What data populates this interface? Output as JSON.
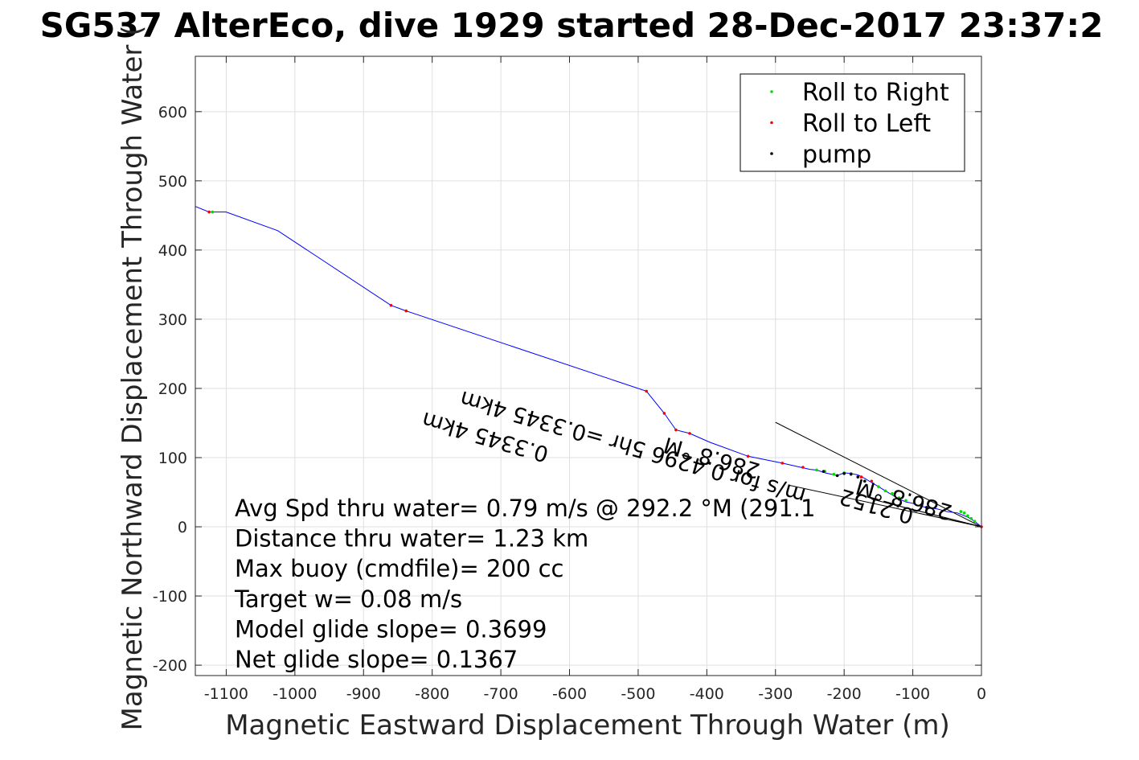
{
  "chart_data": {
    "type": "line",
    "title": "SG537 AlterEco, dive 1929 started 28-Dec-2017 23:37:2",
    "xlabel": "Magnetic Eastward Displacement Through Water (m)",
    "ylabel": "Magnetic Northward Displacement Through Water (",
    "xlim": [
      -1145,
      0
    ],
    "ylim": [
      -215,
      680
    ],
    "xticks": [
      -1100,
      -1000,
      -900,
      -800,
      -700,
      -600,
      -500,
      -400,
      -300,
      -200,
      -100,
      0
    ],
    "yticks": [
      -200,
      -100,
      0,
      100,
      200,
      300,
      400,
      500,
      600
    ],
    "grid": true,
    "legend_position": "top-right",
    "legend": [
      {
        "label": "Roll to Right",
        "color": "#00dd00",
        "marker": "dot"
      },
      {
        "label": "Roll to Left",
        "color": "#ff0000",
        "marker": "dot"
      },
      {
        "label": "pump",
        "color": "#000000",
        "marker": "dot"
      }
    ],
    "series": [
      {
        "color": "#0000ff",
        "x": [
          -1145,
          -1125,
          -1118,
          -1100,
          -1025,
          -860,
          -838,
          -488,
          -462,
          -445,
          -425,
          -395,
          -340,
          -290,
          -250,
          -240,
          -228,
          -210,
          -200,
          -190,
          -180,
          -170,
          -160,
          -150,
          -140,
          -130,
          -120,
          -110,
          -100,
          -90,
          -80,
          -65,
          -50,
          -35,
          -20,
          -10,
          0
        ],
        "y": [
          463,
          455,
          455,
          455,
          428,
          320,
          312,
          196,
          164,
          140,
          135,
          122,
          102,
          92,
          83,
          82,
          78,
          74,
          78,
          77,
          75,
          70,
          64,
          58,
          52,
          46,
          40,
          36,
          34,
          30,
          28,
          26,
          22,
          20,
          14,
          8,
          0
        ]
      }
    ],
    "roll_right_points": {
      "x": [
        -1120,
        -240,
        -228,
        -215,
        -200,
        -190,
        -150,
        -140,
        -130,
        -120,
        -110,
        -30,
        -25,
        -20,
        -15,
        -10
      ],
      "y": [
        455,
        82,
        80,
        76,
        78,
        77,
        58,
        52,
        48,
        42,
        38,
        22,
        20,
        16,
        12,
        8
      ]
    },
    "roll_left_points": {
      "x": [
        -1125,
        -860,
        -838,
        -488,
        -462,
        -445,
        -425,
        -340,
        -290,
        -260,
        -175,
        -160,
        0
      ],
      "y": [
        455,
        320,
        312,
        196,
        164,
        140,
        135,
        102,
        92,
        86,
        72,
        66,
        0
      ]
    },
    "pump_points": {
      "x": [
        -230,
        -210,
        -200,
        -190,
        -180,
        -170,
        -120,
        -80
      ],
      "y": [
        80,
        74,
        77,
        76,
        72,
        66,
        40,
        28
      ]
    },
    "vector_lines": [
      {
        "x": [
          -300,
          0
        ],
        "y": [
          151,
          0
        ]
      },
      {
        "x": [
          -280,
          0
        ],
        "y": [
          60,
          0
        ]
      },
      {
        "x": [
          -120,
          0
        ],
        "y": [
          30,
          0
        ]
      },
      {
        "x": [
          -160,
          0
        ],
        "y": [
          40,
          0
        ]
      }
    ],
    "rotated_annotations": [
      {
        "text": "0.3345 4km",
        "x": -720,
        "y": 140
      },
      {
        "text": "286.8 °M",
        "x": -390,
        "y": 110
      },
      {
        "text": "m/s for 0.4296 5hr =0.3345 4km",
        "x": -505,
        "y": 125
      },
      {
        "text": "286.8 °M",
        "x": -110,
        "y": 50
      },
      {
        "text": "0.2152",
        "x": -150,
        "y": 40
      }
    ],
    "annotations": [
      "Avg Spd thru water=  0.79 m/s @ 292.2 °M (291.1",
      "Distance thru water=  1.23 km",
      "Max buoy (cmdfile)= 200 cc",
      "Target w= 0.08 m/s",
      "Model glide slope= 0.3699",
      "Net glide slope= 0.1367"
    ]
  }
}
